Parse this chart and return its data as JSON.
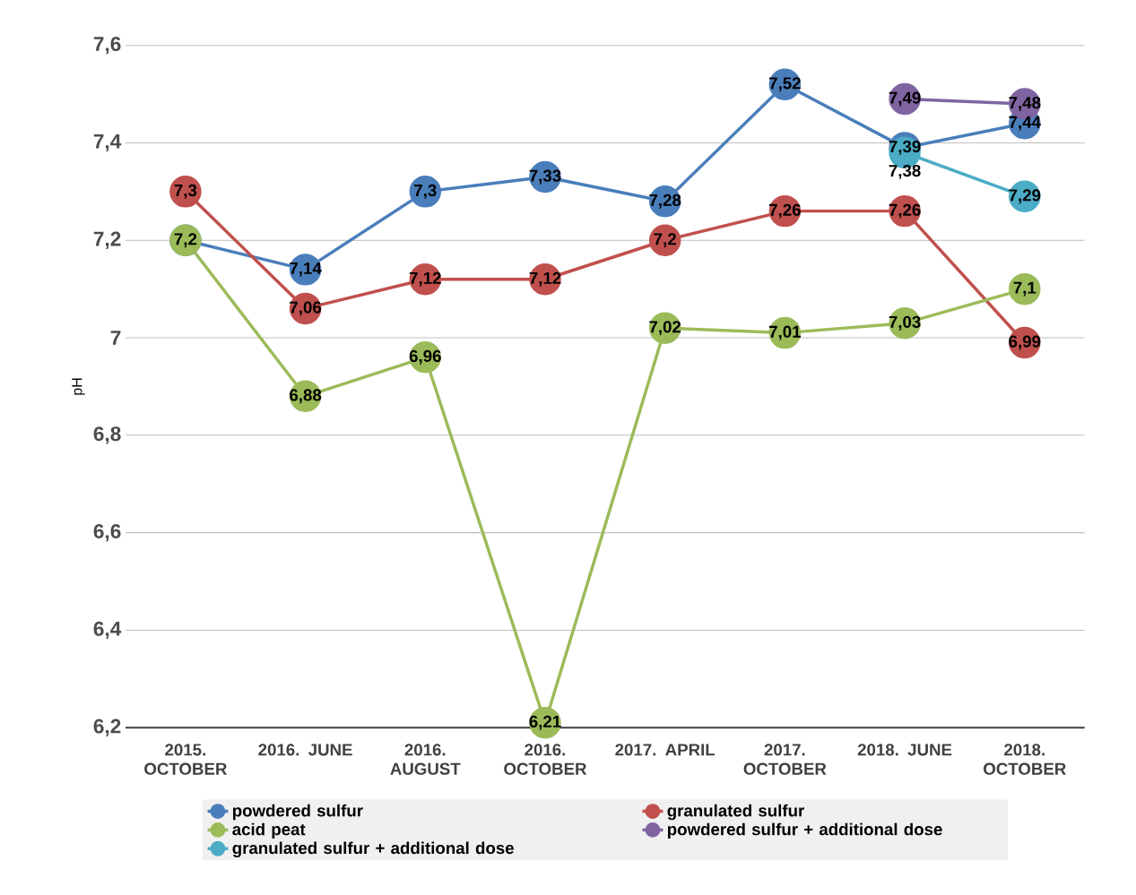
{
  "chart_data": {
    "type": "line",
    "ylabel": "pH",
    "categories": [
      "2015. OCTOBER",
      "2016. JUNE",
      "2016. AUGUST",
      "2016. OCTOBER",
      "2017. APRIL",
      "2017. OCTOBER",
      "2018. JUNE",
      "2018. OCTOBER"
    ],
    "series": [
      {
        "name": "powdered sulfur",
        "color": "#4a7ebb",
        "values": [
          7.2,
          7.14,
          7.3,
          7.33,
          7.28,
          7.52,
          7.39,
          7.44
        ],
        "value_labels": [
          null,
          "7,14",
          "7,3",
          "7,33",
          "7,28",
          "7,52",
          "7,39",
          "7,44"
        ]
      },
      {
        "name": "granulated sulfur",
        "color": "#c0504d",
        "values": [
          7.3,
          7.06,
          7.12,
          7.12,
          7.2,
          7.26,
          7.26,
          6.99
        ],
        "value_labels": [
          "7,3",
          "7,06",
          "7,12",
          "7,12",
          "7,2",
          "7,26",
          "7,26",
          "6,99"
        ]
      },
      {
        "name": "acid peat",
        "color": "#9bbb59",
        "values": [
          7.2,
          6.88,
          6.96,
          6.21,
          7.02,
          7.01,
          7.03,
          7.1
        ],
        "value_labels": [
          "7,2",
          "6,88",
          "6,96",
          "6,21",
          "7,02",
          "7,01",
          "7,03",
          "7,1"
        ]
      },
      {
        "name": "powdered sulfur +  additional dose",
        "color": "#8064a2",
        "values": [
          null,
          null,
          null,
          null,
          null,
          null,
          7.49,
          7.48
        ],
        "value_labels": [
          null,
          null,
          null,
          null,
          null,
          null,
          "7,49",
          "7,48"
        ]
      },
      {
        "name": "granulated sulfur + additional dose",
        "color": "#4bacc6",
        "values": [
          null,
          null,
          null,
          null,
          null,
          null,
          7.38,
          7.29
        ],
        "value_labels": [
          null,
          null,
          null,
          null,
          null,
          null,
          "7,38",
          "7,29"
        ]
      }
    ],
    "ylim": [
      6.2,
      7.6
    ],
    "yticks": [
      {
        "value": 6.2,
        "label": "6,2"
      },
      {
        "value": 6.4,
        "label": "6,4"
      },
      {
        "value": 6.6,
        "label": "6,6"
      },
      {
        "value": 6.8,
        "label": "6,8"
      },
      7,
      {
        "value": 7.2,
        "label": "7,2"
      },
      {
        "value": 7.4,
        "label": "7,4"
      },
      {
        "value": 7.6,
        "label": "7,6"
      }
    ],
    "grid": "y",
    "legend": "bottom",
    "marker": "circle",
    "line_style": "solid"
  }
}
